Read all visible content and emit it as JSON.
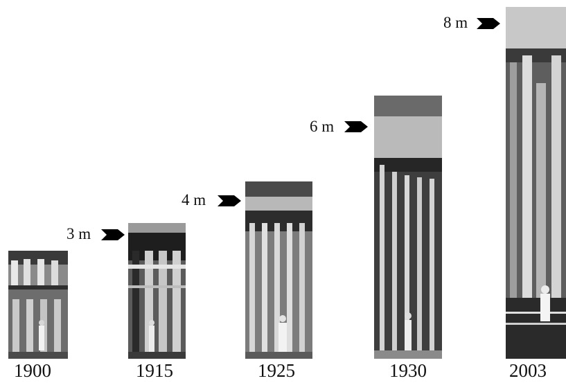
{
  "figure": {
    "photos": [
      {
        "year": "1900",
        "height_label": ""
      },
      {
        "year": "1915",
        "height_label": "3 m"
      },
      {
        "year": "1925",
        "height_label": "4 m"
      },
      {
        "year": "1930",
        "height_label": "6 m"
      },
      {
        "year": "2003",
        "height_label": "8 m"
      }
    ]
  }
}
